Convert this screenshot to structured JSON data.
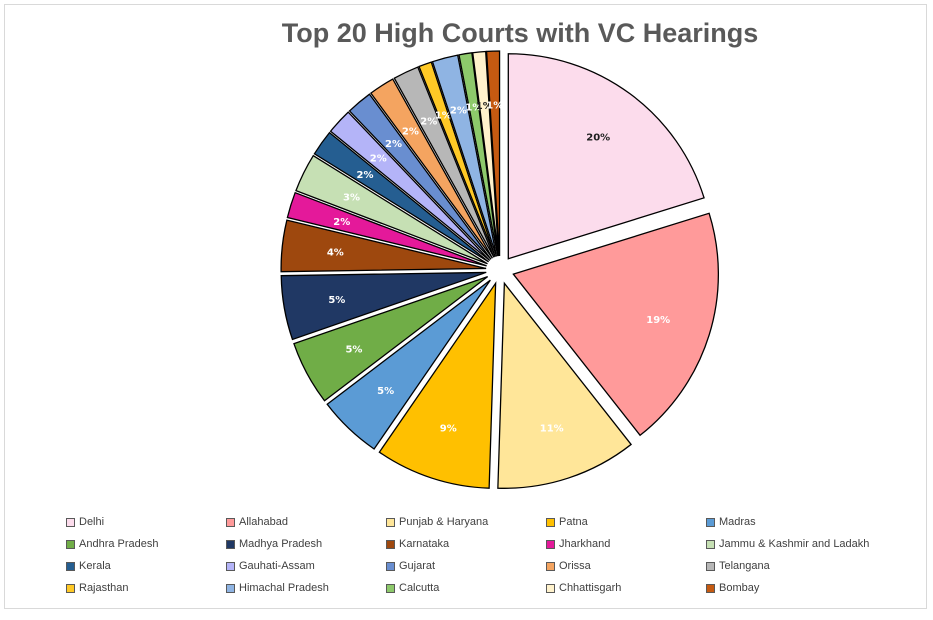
{
  "chart_data": {
    "type": "pie",
    "title": "Top 20 High Courts with VC Hearings",
    "slices": [
      {
        "label": "Delhi",
        "value": 20,
        "display": "20%",
        "color": "#fcdcec"
      },
      {
        "label": "Allahabad",
        "value": 19,
        "display": "19%",
        "color": "#ff9a9a"
      },
      {
        "label": "Punjab & Haryana",
        "value": 11,
        "display": "11%",
        "color": "#ffe699"
      },
      {
        "label": "Patna",
        "value": 9,
        "display": "9%",
        "color": "#ffc000"
      },
      {
        "label": "Madras",
        "value": 5,
        "display": "5%",
        "color": "#5b9bd5"
      },
      {
        "label": "Andhra Pradesh",
        "value": 5,
        "display": "5%",
        "color": "#70ad47"
      },
      {
        "label": "Madhya Pradesh",
        "value": 5,
        "display": "5%",
        "color": "#203864"
      },
      {
        "label": "Karnataka",
        "value": 4,
        "display": "4%",
        "color": "#9e480e"
      },
      {
        "label": "Jharkhand",
        "value": 2,
        "display": "2%",
        "color": "#e4199a"
      },
      {
        "label": "Jammu & Kashmir and Ladakh",
        "value": 3,
        "display": "3%",
        "color": "#c6e0b4"
      },
      {
        "label": "Kerala",
        "value": 2,
        "display": "2%",
        "color": "#255e91"
      },
      {
        "label": "Gauhati-Assam",
        "value": 2,
        "display": "2%",
        "color": "#b4b4f8"
      },
      {
        "label": "Gujarat",
        "value": 2,
        "display": "2%",
        "color": "#698ed0"
      },
      {
        "label": "Orissa",
        "value": 2,
        "display": "2%",
        "color": "#f4a460"
      },
      {
        "label": "Telangana",
        "value": 2,
        "display": "2%",
        "color": "#b7b7b7"
      },
      {
        "label": "Rajasthan",
        "value": 1,
        "display": "1%",
        "color": "#ffc926"
      },
      {
        "label": "Himachal Pradesh",
        "value": 2,
        "display": "2%",
        "color": "#8fb4e3"
      },
      {
        "label": "Calcutta",
        "value": 1,
        "display": "1%",
        "color": "#8dc96b"
      },
      {
        "label": "Chhattisgarh",
        "value": 1,
        "display": "1%",
        "color": "#fff2cc"
      },
      {
        "label": "Bombay",
        "value": 1,
        "display": "1%",
        "color": "#c55a11"
      }
    ],
    "legend_position": "bottom"
  }
}
